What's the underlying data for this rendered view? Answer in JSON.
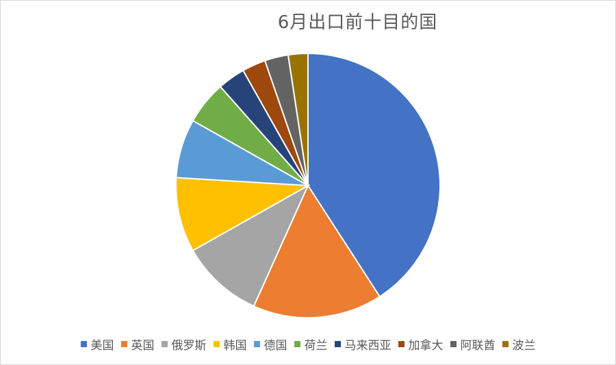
{
  "chart_data": {
    "type": "pie",
    "title": "6月出口前十目的国",
    "categories": [
      "美国",
      "英国",
      "俄罗斯",
      "韩国",
      "德国",
      "荷兰",
      "马来西亚",
      "加拿大",
      "阿联酋",
      "波兰"
    ],
    "values": [
      42.5,
      16.5,
      10.5,
      9.5,
      7.5,
      5.5,
      3.5,
      3.0,
      3.0,
      2.5
    ],
    "colors": [
      "#4472c4",
      "#ed7d31",
      "#a5a5a5",
      "#ffc000",
      "#5b9bd5",
      "#70ad47",
      "#264478",
      "#9e480e",
      "#636363",
      "#997300"
    ],
    "legend": "bottom"
  }
}
